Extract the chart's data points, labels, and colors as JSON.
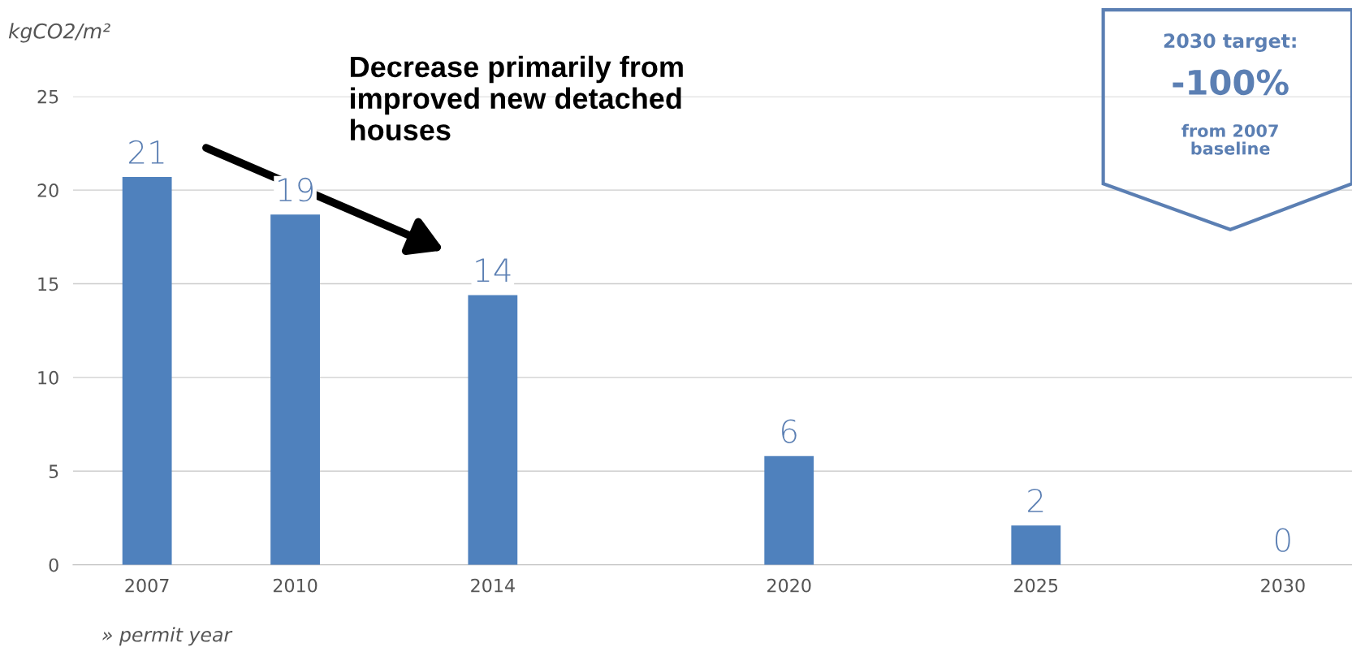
{
  "chart_data": {
    "type": "bar",
    "ylabel": "kgCO2/m²",
    "xlabel": "» permit year",
    "x": [
      2007,
      2010,
      2014,
      2020,
      2025,
      2030
    ],
    "values": [
      20.7,
      18.7,
      14.4,
      5.8,
      2.1,
      0
    ],
    "value_labels": [
      "21",
      "19",
      "14",
      "6",
      "2",
      "0"
    ],
    "color": "#4f81bd",
    "xlim": [
      2005.5,
      2031.4
    ],
    "xticks": [
      2007,
      2010,
      2014,
      2020,
      2025,
      2030
    ],
    "ylim": [
      0,
      25
    ],
    "yticks": [
      0,
      5,
      10,
      15,
      20,
      25
    ],
    "grid": "y",
    "annotations": [
      "Decrease primarily from\nimproved new detached\nhouses",
      "2030 target:",
      "-100%",
      "from 2007\nbaseline"
    ]
  }
}
